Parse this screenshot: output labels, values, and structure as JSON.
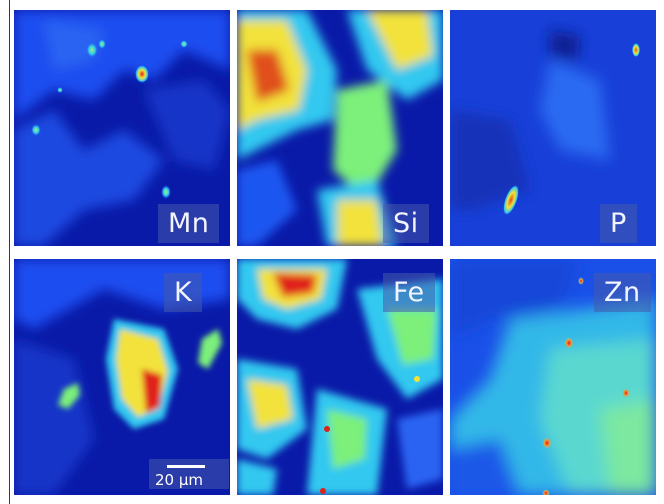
{
  "panels": [
    {
      "element": "Mn"
    },
    {
      "element": "Si"
    },
    {
      "element": "P"
    },
    {
      "element": "K"
    },
    {
      "element": "Fe"
    },
    {
      "element": "Zn"
    }
  ],
  "scale_bar": {
    "label": "20 μm"
  },
  "colors": {
    "low": "#0a1aa8",
    "mid_low": "#1e56f0",
    "mid": "#30c8f0",
    "mid_high": "#7cf07a",
    "high_yellow": "#f2e23a",
    "high_red": "#e0201a"
  }
}
